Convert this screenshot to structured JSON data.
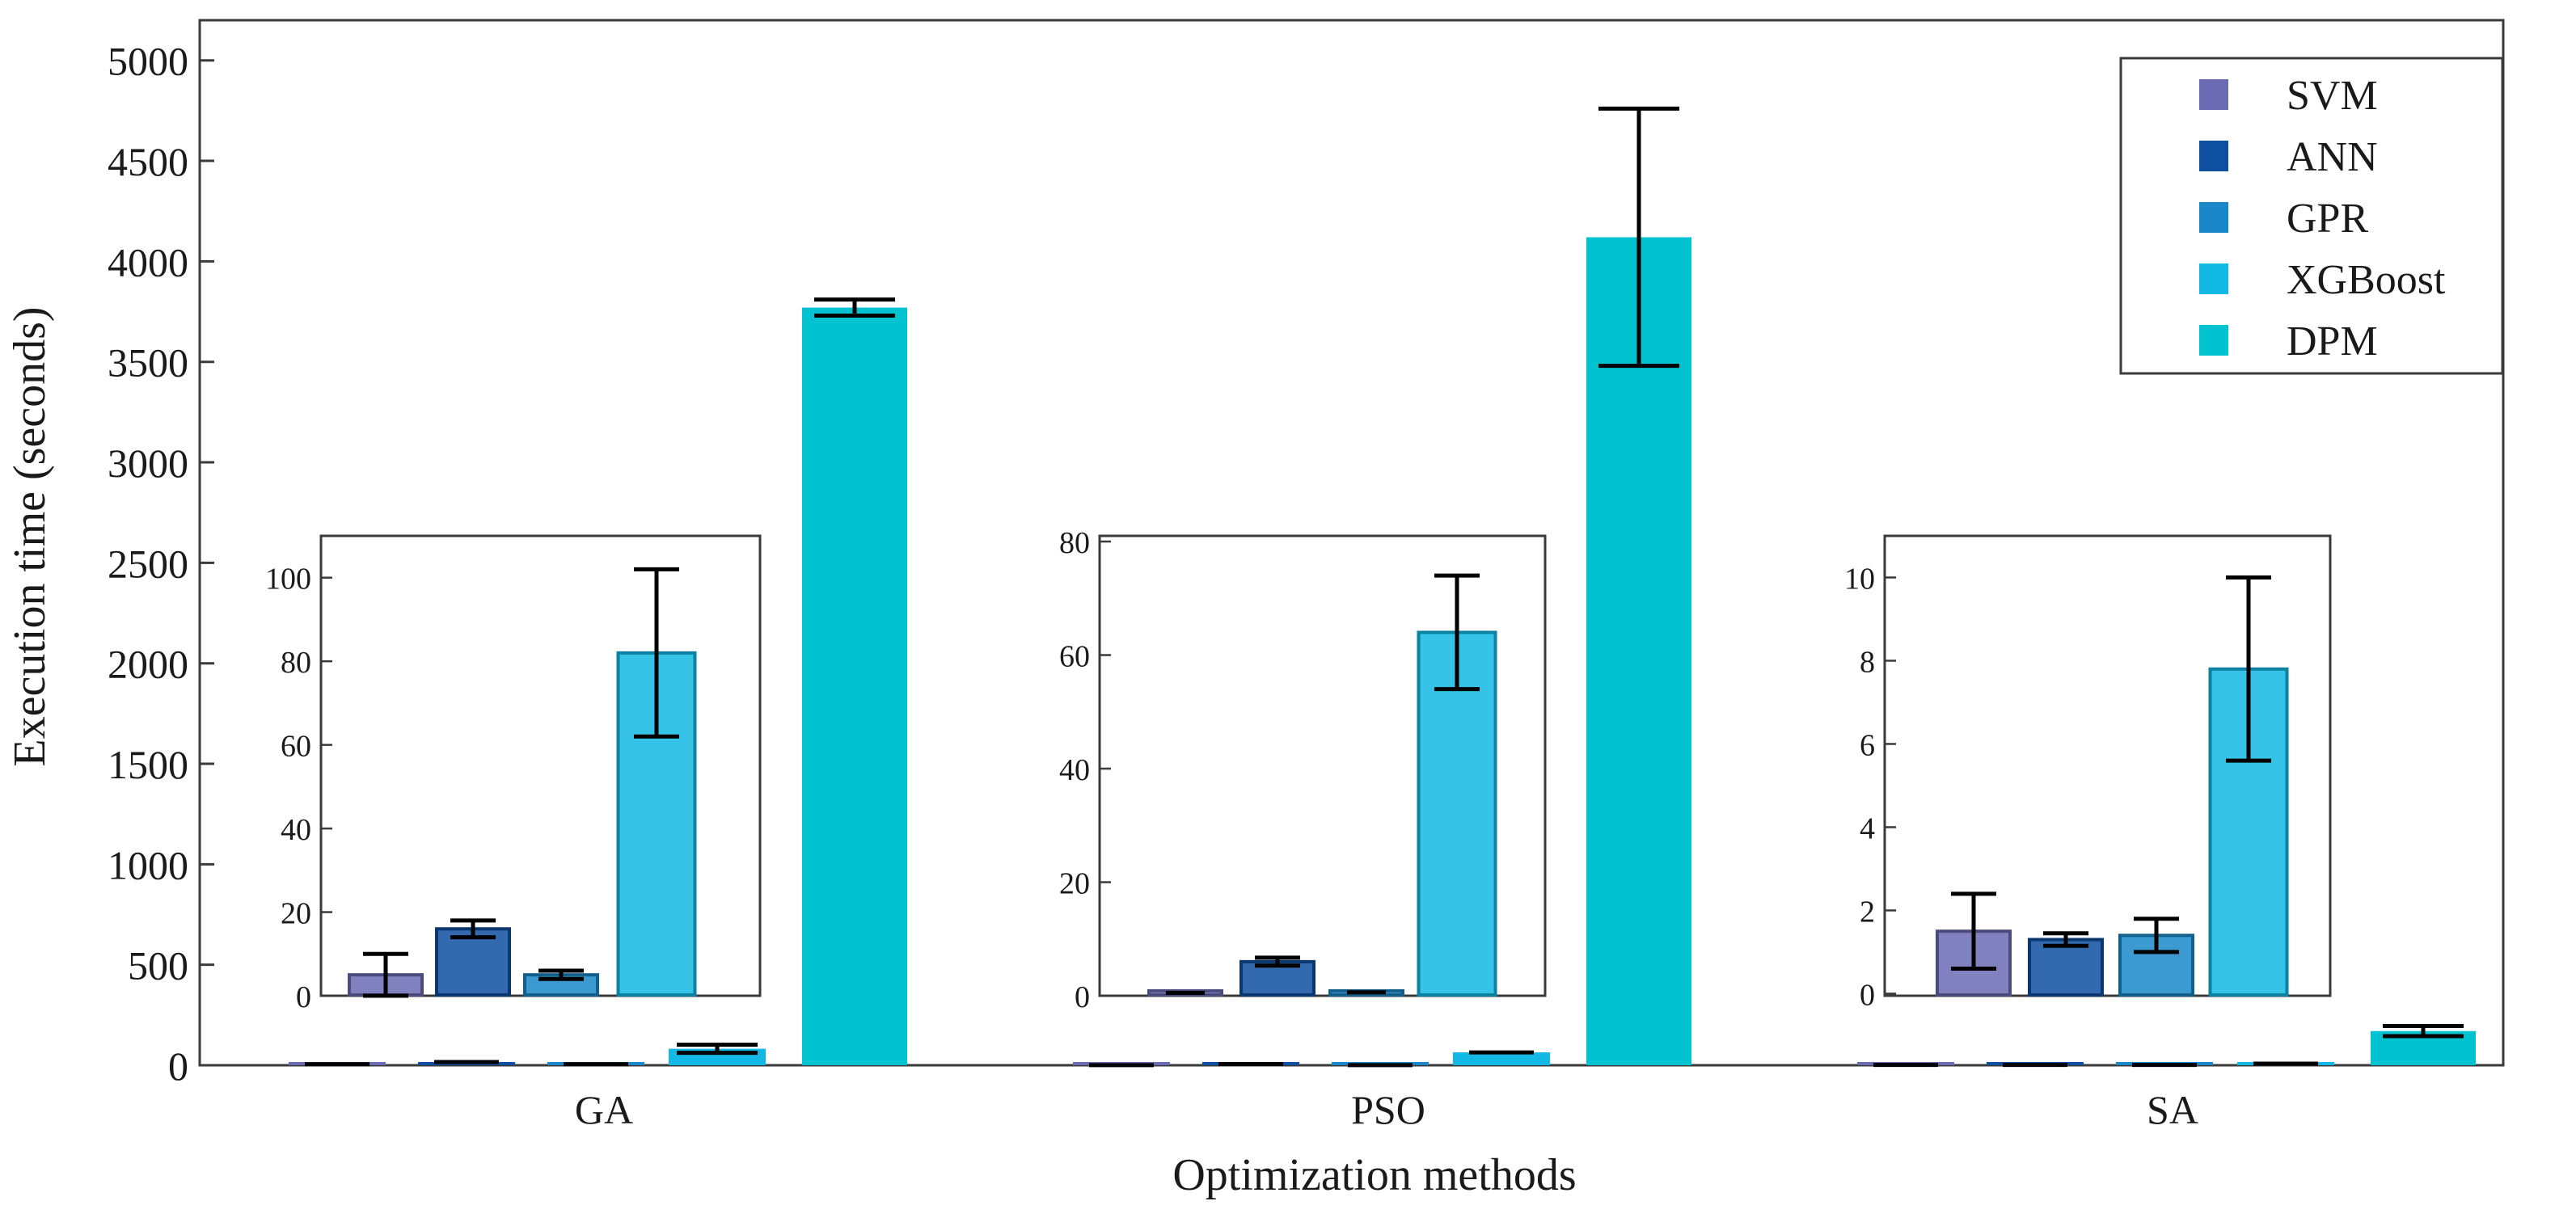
{
  "chart_data": {
    "type": "bar",
    "title": "",
    "xlabel": "Optimization methods",
    "ylabel": "Execution time (seconds)",
    "categories": [
      "GA",
      "PSO",
      "SA"
    ],
    "ylim": [
      0,
      5200
    ],
    "yticks": [
      0,
      500,
      1000,
      1500,
      2000,
      2500,
      3000,
      3500,
      4000,
      4500,
      5000
    ],
    "series": [
      {
        "name": "SVM",
        "color": "#6b6bb4",
        "values": [
          5,
          0.5,
          1.5
        ],
        "errors": [
          5,
          0.3,
          0.9
        ]
      },
      {
        "name": "ANN",
        "color": "#0f4fa0",
        "values": [
          16,
          6,
          1.3
        ],
        "errors": [
          2,
          0.7,
          0.15
        ]
      },
      {
        "name": "GPR",
        "color": "#1a88c8",
        "values": [
          5,
          0.6,
          1.4
        ],
        "errors": [
          1,
          0.2,
          0.4
        ]
      },
      {
        "name": "XGBoost",
        "color": "#12b9e4",
        "values": [
          82,
          64,
          7.8
        ],
        "errors": [
          20,
          10,
          2.2
        ]
      },
      {
        "name": "DPM",
        "color": "#00c2d0",
        "values": [
          3770,
          4120,
          170
        ],
        "errors": [
          40,
          640,
          25
        ]
      }
    ],
    "legend": {
      "position": "top-right"
    },
    "insets": [
      {
        "category": "GA",
        "ylim": [
          0,
          110
        ],
        "yticks": [
          0,
          20,
          40,
          60,
          80,
          100
        ],
        "series": [
          "SVM",
          "ANN",
          "GPR",
          "XGBoost"
        ]
      },
      {
        "category": "PSO",
        "ylim": [
          0,
          81
        ],
        "yticks": [
          0,
          20,
          40,
          60,
          80
        ],
        "series": [
          "SVM",
          "ANN",
          "GPR",
          "XGBoost"
        ]
      },
      {
        "category": "SA",
        "ylim": [
          -0.05,
          11
        ],
        "yticks": [
          0,
          2,
          4,
          6,
          8,
          10
        ],
        "series": [
          "SVM",
          "ANN",
          "GPR",
          "XGBoost"
        ]
      }
    ]
  }
}
